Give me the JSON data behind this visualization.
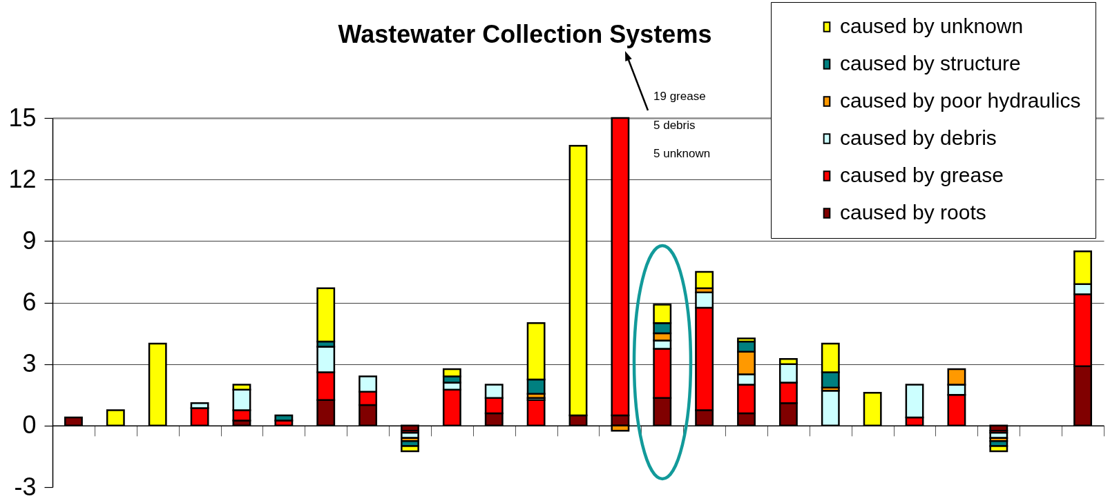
{
  "chart_data": {
    "type": "bar",
    "title": "Wastewater Collection Systems",
    "annotations": [
      "19 grease",
      "5 debris",
      "5 unknown"
    ],
    "categories": [
      null,
      null,
      null,
      null,
      null,
      null,
      null,
      null,
      null,
      null,
      null,
      null,
      null,
      null,
      null,
      null,
      null,
      null,
      null,
      null,
      null,
      null,
      null,
      null,
      null
    ],
    "stacked": true,
    "series": [
      {
        "name": "caused by roots",
        "color": "#800000",
        "values": [
          0.4,
          null,
          null,
          null,
          0.25,
          null,
          1.25,
          1.0,
          -0.25,
          null,
          0.6,
          null,
          0.5,
          0.5,
          1.35,
          0.75,
          0.6,
          1.1,
          null,
          null,
          null,
          null,
          -0.25,
          null,
          2.9
        ]
      },
      {
        "name": "caused by grease",
        "color": "#ff0000",
        "values": [
          null,
          null,
          null,
          0.85,
          0.5,
          0.25,
          1.35,
          0.65,
          -0.1,
          1.75,
          0.75,
          1.25,
          null,
          14.5,
          2.4,
          5.0,
          1.4,
          1.0,
          null,
          null,
          0.4,
          1.5,
          -0.1,
          null,
          3.5
        ]
      },
      {
        "name": "caused by debris",
        "color": "#ccffff",
        "values": [
          null,
          null,
          null,
          0.25,
          1.0,
          null,
          1.25,
          0.75,
          -0.25,
          0.35,
          0.65,
          0.1,
          null,
          null,
          0.4,
          0.75,
          0.5,
          0.9,
          1.7,
          null,
          1.6,
          0.5,
          -0.25,
          null,
          0.5
        ]
      },
      {
        "name": "caused by poor hydraulics",
        "color": "#ff9900",
        "values": [
          null,
          null,
          null,
          null,
          null,
          null,
          null,
          null,
          -0.15,
          null,
          null,
          0.2,
          null,
          -0.25,
          0.35,
          0.2,
          1.1,
          null,
          0.15,
          null,
          null,
          0.75,
          -0.15,
          null,
          null
        ]
      },
      {
        "name": "caused by structure",
        "color": "#008080",
        "values": [
          null,
          null,
          null,
          null,
          null,
          0.25,
          0.25,
          null,
          -0.25,
          0.3,
          null,
          0.7,
          null,
          null,
          0.5,
          null,
          0.5,
          null,
          0.75,
          null,
          null,
          null,
          -0.25,
          null,
          null
        ]
      },
      {
        "name": "caused by unknown",
        "color": "#ffff00",
        "values": [
          null,
          0.75,
          4.0,
          null,
          0.25,
          null,
          2.6,
          null,
          -0.25,
          0.35,
          null,
          2.75,
          13.15,
          null,
          0.9,
          0.8,
          0.15,
          0.25,
          1.4,
          1.6,
          null,
          null,
          -0.25,
          null,
          1.6
        ]
      }
    ],
    "ylim": [
      -3,
      15
    ],
    "yticks": [
      -3,
      0,
      3,
      6,
      9,
      12,
      15
    ],
    "grid": "y",
    "legend": "top right",
    "tick_labels": "y"
  }
}
